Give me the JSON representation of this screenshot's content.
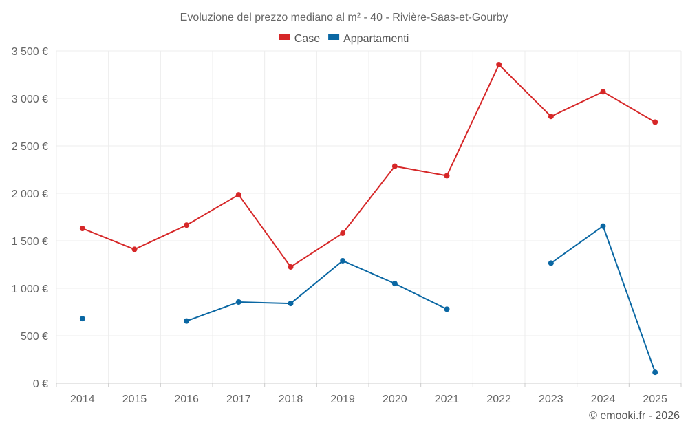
{
  "chart_data": {
    "type": "line",
    "title": "Evoluzione del prezzo mediano al m² - 40 - Rivière-Saas-et-Gourby",
    "categories": [
      "2014",
      "2015",
      "2016",
      "2017",
      "2018",
      "2019",
      "2020",
      "2021",
      "2022",
      "2023",
      "2024",
      "2025"
    ],
    "series": [
      {
        "name": "Case",
        "color": "#d62728",
        "values": [
          1630,
          1410,
          1665,
          1985,
          1225,
          1580,
          2285,
          2185,
          3355,
          2810,
          3070,
          2750
        ]
      },
      {
        "name": "Appartamenti",
        "color": "#0a67a3",
        "values": [
          680,
          null,
          655,
          855,
          840,
          1290,
          1050,
          780,
          null,
          1265,
          1655,
          115
        ]
      }
    ],
    "ylim": [
      0,
      3500
    ],
    "yticks": [
      0,
      500,
      1000,
      1500,
      2000,
      2500,
      3000,
      3500
    ],
    "ytick_labels": [
      "0 €",
      "500 €",
      "1 000 €",
      "1 500 €",
      "2 000 €",
      "2 500 €",
      "3 000 €",
      "3 500 €"
    ],
    "xlabel": "",
    "ylabel": "",
    "grid": true,
    "legend_position": "top-center"
  },
  "credit": "© emooki.fr - 2026"
}
